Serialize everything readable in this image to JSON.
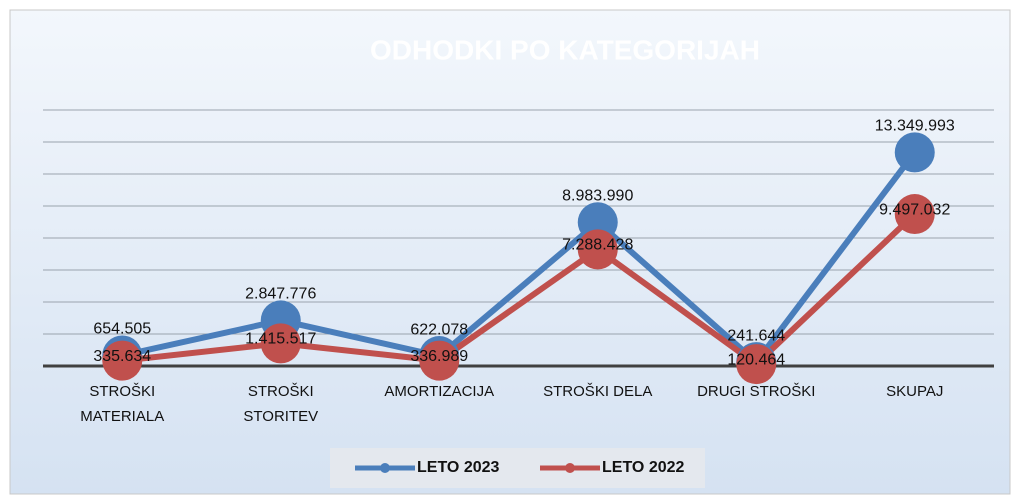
{
  "chart_data": {
    "type": "line",
    "title": "ODHODKI PO KATEGORIJAH",
    "categories": [
      "STROŠKI MATERIALA",
      "STROŠKI STORITEV",
      "AMORTIZACIJA",
      "STROŠKI DELA",
      "DRUGI STROŠKI",
      "SKUPAJ"
    ],
    "series": [
      {
        "name": "LETO 2023",
        "color": "#4a7ebb",
        "values": [
          654505,
          2847776,
          622078,
          8983990,
          241644,
          13349993
        ],
        "value_labels": [
          "654.505",
          "2.847.776",
          "622.078",
          "8.983.990",
          "241.644",
          "13.349.993"
        ]
      },
      {
        "name": "LETO 2022",
        "color": "#c0504d",
        "values": [
          335634,
          1415517,
          336989,
          7288428,
          120464,
          9497032
        ],
        "value_labels": [
          "335.634",
          "1.415.517",
          "336.989",
          "7.288.428",
          "120.464",
          "9.497.032"
        ]
      }
    ],
    "ylim": [
      0,
      16000000
    ],
    "yticks": [
      0,
      2000000,
      4000000,
      6000000,
      8000000,
      10000000,
      12000000,
      14000000,
      16000000
    ],
    "grid": true,
    "legend": "bottom"
  }
}
